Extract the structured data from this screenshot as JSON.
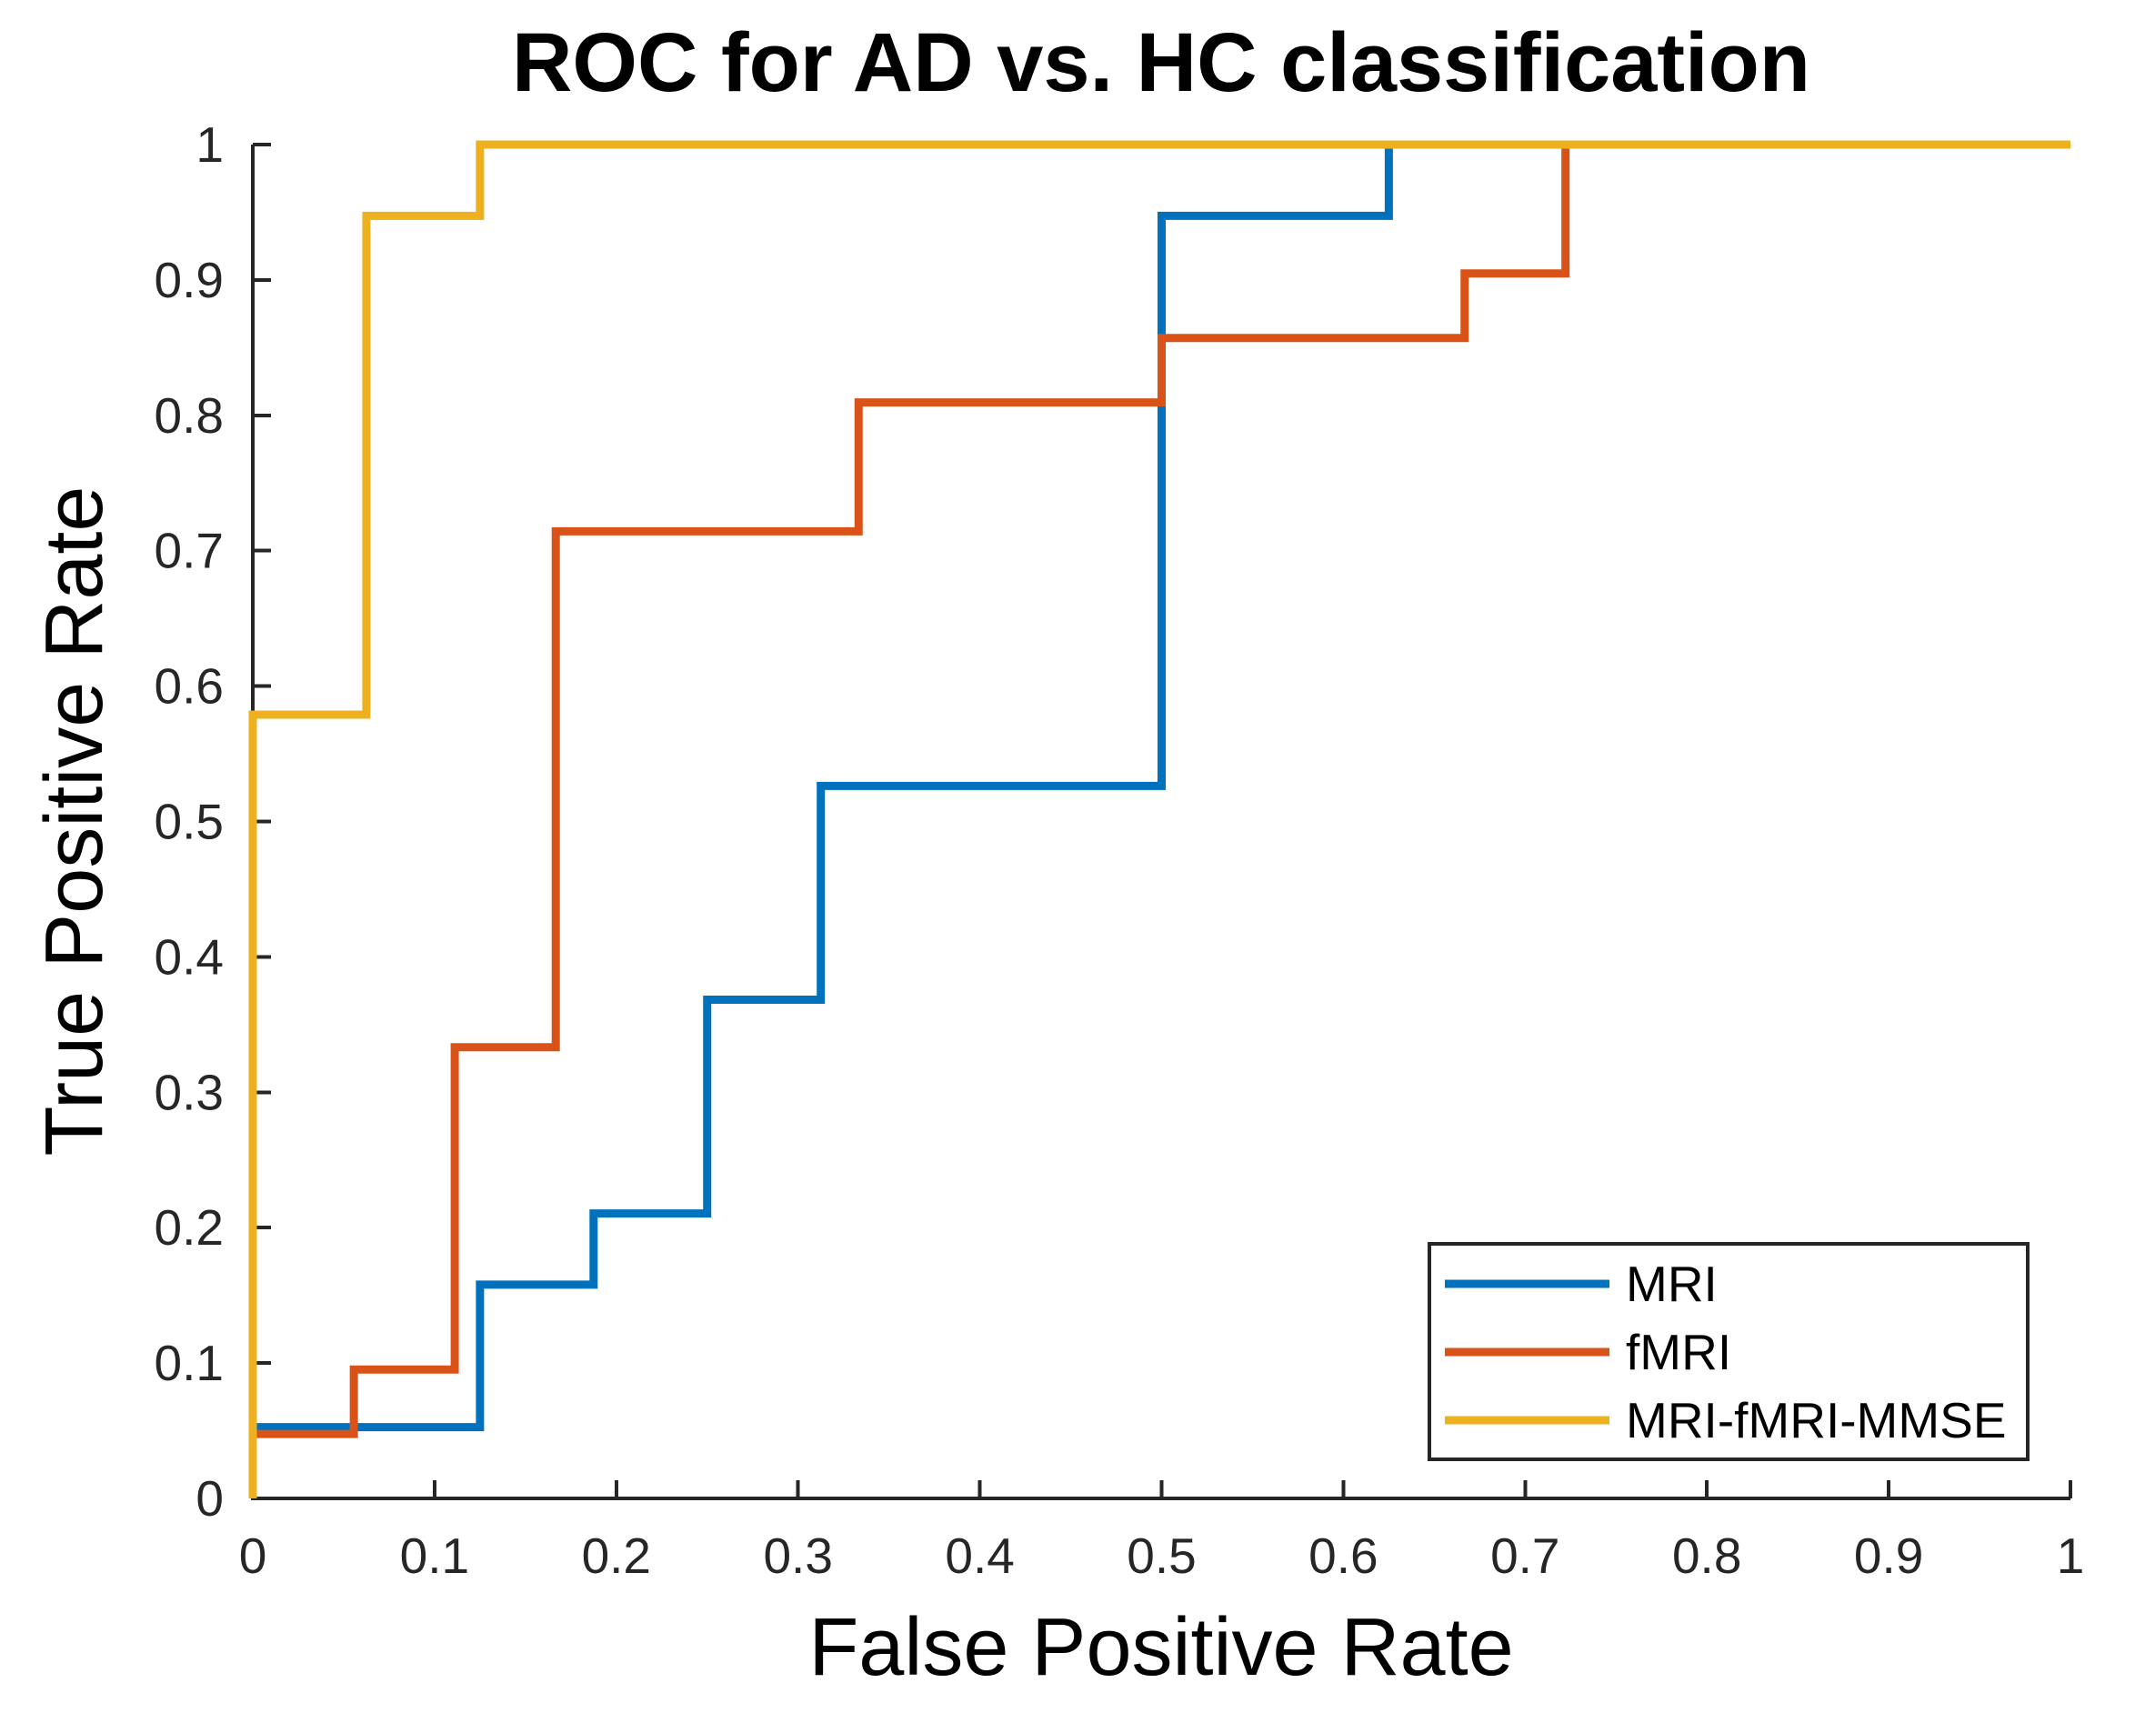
{
  "figure": {
    "background": "#ffffff",
    "axis_color": "#262626"
  },
  "chart_data": {
    "type": "line",
    "subtype": "roc-step",
    "title": "ROC for AD vs. HC classification",
    "xlabel": "False Positive Rate",
    "ylabel": "True Positive Rate",
    "xlim": [
      0,
      1
    ],
    "ylim": [
      0,
      1
    ],
    "grid": false,
    "legend_position": "lower right",
    "xticks": [
      0,
      0.1,
      0.2,
      0.3,
      0.4,
      0.5,
      0.6,
      0.7,
      0.8,
      0.9,
      1
    ],
    "xtick_labels": [
      "0",
      "0.1",
      "0.2",
      "0.3",
      "0.4",
      "0.5",
      "0.6",
      "0.7",
      "0.8",
      "0.9",
      "1"
    ],
    "yticks": [
      0,
      0.1,
      0.2,
      0.3,
      0.4,
      0.5,
      0.6,
      0.7,
      0.8,
      0.9,
      1
    ],
    "ytick_labels": [
      "0",
      "0.1",
      "0.2",
      "0.3",
      "0.4",
      "0.5",
      "0.6",
      "0.7",
      "0.8",
      "0.9",
      "1"
    ],
    "series": [
      {
        "name": "MRI",
        "color": "#0072BD",
        "points": [
          [
            0,
            0
          ],
          [
            0,
            0.0526
          ],
          [
            0.125,
            0.0526
          ],
          [
            0.125,
            0.1579
          ],
          [
            0.1875,
            0.1579
          ],
          [
            0.1875,
            0.2105
          ],
          [
            0.25,
            0.2105
          ],
          [
            0.25,
            0.3684
          ],
          [
            0.3125,
            0.3684
          ],
          [
            0.3125,
            0.5263
          ],
          [
            0.5,
            0.5263
          ],
          [
            0.5,
            0.9474
          ],
          [
            0.625,
            0.9474
          ],
          [
            0.625,
            1
          ],
          [
            1,
            1
          ]
        ]
      },
      {
        "name": "fMRI",
        "color": "#D95319",
        "points": [
          [
            0,
            0
          ],
          [
            0,
            0.0476
          ],
          [
            0.0556,
            0.0476
          ],
          [
            0.0556,
            0.0952
          ],
          [
            0.1111,
            0.0952
          ],
          [
            0.1111,
            0.3333
          ],
          [
            0.1667,
            0.3333
          ],
          [
            0.1667,
            0.7143
          ],
          [
            0.3333,
            0.7143
          ],
          [
            0.3333,
            0.8095
          ],
          [
            0.5,
            0.8095
          ],
          [
            0.5,
            0.8571
          ],
          [
            0.6667,
            0.8571
          ],
          [
            0.6667,
            0.9048
          ],
          [
            0.7222,
            0.9048
          ],
          [
            0.7222,
            1
          ],
          [
            1,
            1
          ]
        ]
      },
      {
        "name": "MRI-fMRI-MMSE",
        "color": "#EDB120",
        "points": [
          [
            0,
            0
          ],
          [
            0,
            0.5789
          ],
          [
            0.0625,
            0.5789
          ],
          [
            0.0625,
            0.9474
          ],
          [
            0.125,
            0.9474
          ],
          [
            0.125,
            1
          ],
          [
            1,
            1
          ]
        ]
      }
    ]
  },
  "legend": {
    "items": [
      {
        "label": "MRI",
        "color": "#0072BD"
      },
      {
        "label": "fMRI",
        "color": "#D95319"
      },
      {
        "label": "MRI-fMRI-MMSE",
        "color": "#EDB120"
      }
    ]
  }
}
